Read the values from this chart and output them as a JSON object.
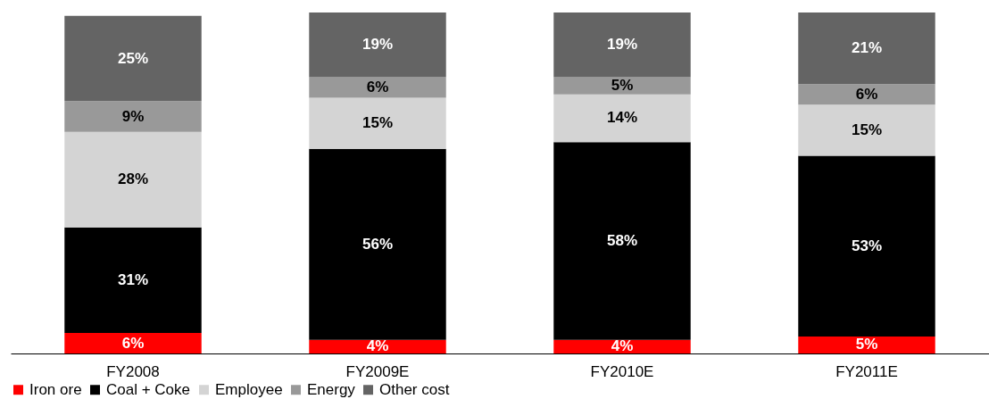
{
  "chart_data": {
    "type": "bar",
    "stacked": true,
    "categories": [
      "FY2008",
      "FY2009E",
      "FY2010E",
      "FY2011E"
    ],
    "ylim": [
      0,
      100
    ],
    "tick_labels": "x",
    "legend": "bottom",
    "series": [
      {
        "name": "Iron ore",
        "color": "#ff0000",
        "values": [
          6,
          4,
          4,
          5
        ],
        "value_labels": [
          "6%",
          "4%",
          "4%",
          "5%"
        ]
      },
      {
        "name": "Coal + Coke",
        "color": "#000000",
        "values": [
          31,
          56,
          58,
          53
        ],
        "value_labels": [
          "31%",
          "56%",
          "58%",
          "53%"
        ]
      },
      {
        "name": "Employee",
        "color": "#d4d4d4",
        "values": [
          28,
          15,
          14,
          15
        ],
        "value_labels": [
          "28%",
          "15%",
          "14%",
          "15%"
        ]
      },
      {
        "name": "Energy",
        "color": "#999999",
        "values": [
          9,
          6,
          5,
          6
        ],
        "value_labels": [
          "9%",
          "6%",
          "5%",
          "6%"
        ]
      },
      {
        "name": "Other cost",
        "color": "#646464",
        "values": [
          25,
          19,
          19,
          21
        ],
        "value_labels": [
          "25%",
          "19%",
          "19%",
          "21%"
        ]
      }
    ]
  }
}
